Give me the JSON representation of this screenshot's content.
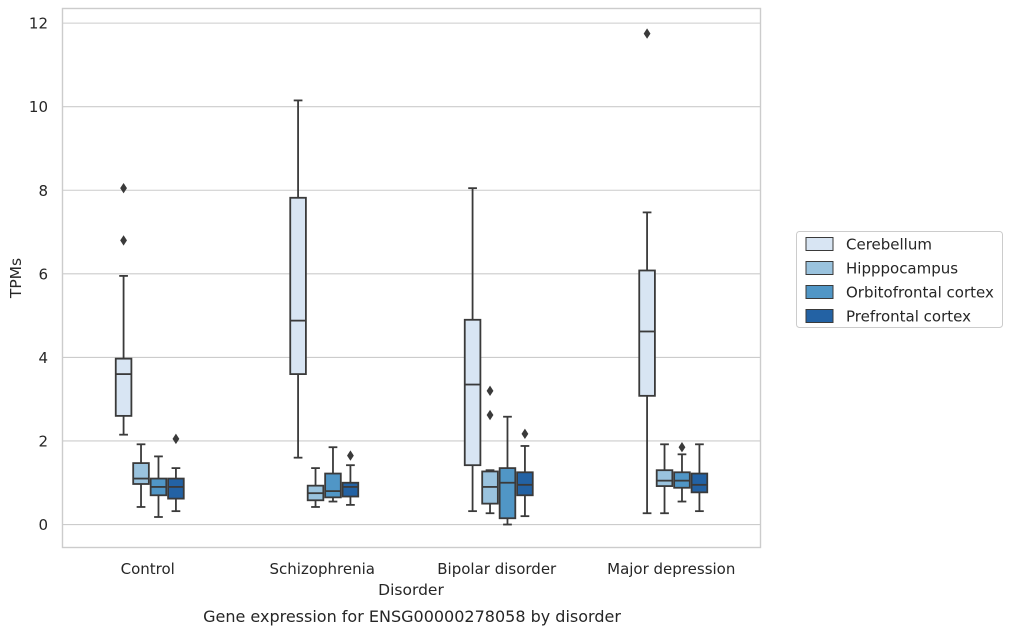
{
  "chart_data": {
    "type": "box",
    "title": "",
    "caption": "Gene expression for ENSG00000278058 by disorder",
    "xlabel": "Disorder",
    "ylabel": "TPMs",
    "ylim": [
      -0.55,
      12.35
    ],
    "yticks": [
      0,
      2,
      4,
      6,
      8,
      10,
      12
    ],
    "grid": "horizontal",
    "legend_position": "right",
    "categories": [
      "Control",
      "Schizophrenia",
      "Bipolar disorder",
      "Major depression"
    ],
    "series": [
      {
        "name": "Cerebellum",
        "color": "#d8e5f3",
        "boxes": [
          {
            "whislo": 2.15,
            "q1": 2.6,
            "med": 3.6,
            "q3": 3.97,
            "whishi": 5.95,
            "fliers": [
              6.8,
              8.05
            ]
          },
          {
            "whislo": 1.6,
            "q1": 3.6,
            "med": 4.88,
            "q3": 7.82,
            "whishi": 10.15,
            "fliers": []
          },
          {
            "whislo": 0.32,
            "q1": 1.42,
            "med": 3.35,
            "q3": 4.9,
            "whishi": 8.05,
            "fliers": []
          },
          {
            "whislo": 0.27,
            "q1": 3.08,
            "med": 4.62,
            "q3": 6.08,
            "whishi": 7.47,
            "fliers": [
              11.75
            ]
          }
        ]
      },
      {
        "name": "Hipppocampus",
        "color": "#9ac3de",
        "boxes": [
          {
            "whislo": 0.42,
            "q1": 0.97,
            "med": 1.1,
            "q3": 1.47,
            "whishi": 1.92,
            "fliers": []
          },
          {
            "whislo": 0.42,
            "q1": 0.58,
            "med": 0.75,
            "q3": 0.93,
            "whishi": 1.35,
            "fliers": []
          },
          {
            "whislo": 0.27,
            "q1": 0.5,
            "med": 0.9,
            "q3": 1.27,
            "whishi": 1.3,
            "fliers": [
              2.62,
              3.2
            ]
          },
          {
            "whislo": 0.27,
            "q1": 0.92,
            "med": 1.05,
            "q3": 1.3,
            "whishi": 1.92,
            "fliers": []
          }
        ]
      },
      {
        "name": "Orbitofrontal cortex",
        "color": "#5096c6",
        "boxes": [
          {
            "whislo": 0.18,
            "q1": 0.7,
            "med": 0.9,
            "q3": 1.1,
            "whishi": 1.63,
            "fliers": []
          },
          {
            "whislo": 0.55,
            "q1": 0.65,
            "med": 0.8,
            "q3": 1.22,
            "whishi": 1.85,
            "fliers": []
          },
          {
            "whislo": 0.0,
            "q1": 0.15,
            "med": 1.0,
            "q3": 1.35,
            "whishi": 2.58,
            "fliers": []
          },
          {
            "whislo": 0.55,
            "q1": 0.88,
            "med": 1.05,
            "q3": 1.25,
            "whishi": 1.68,
            "fliers": [
              1.85
            ]
          }
        ]
      },
      {
        "name": "Prefrontal cortex",
        "color": "#2362a4",
        "boxes": [
          {
            "whislo": 0.32,
            "q1": 0.62,
            "med": 0.9,
            "q3": 1.1,
            "whishi": 1.35,
            "fliers": [
              2.05
            ]
          },
          {
            "whislo": 0.47,
            "q1": 0.67,
            "med": 0.9,
            "q3": 1.0,
            "whishi": 1.42,
            "fliers": [
              1.65
            ]
          },
          {
            "whislo": 0.2,
            "q1": 0.7,
            "med": 0.95,
            "q3": 1.25,
            "whishi": 1.88,
            "fliers": [
              2.17
            ]
          },
          {
            "whislo": 0.32,
            "q1": 0.77,
            "med": 0.95,
            "q3": 1.22,
            "whishi": 1.92,
            "fliers": []
          }
        ]
      }
    ]
  }
}
